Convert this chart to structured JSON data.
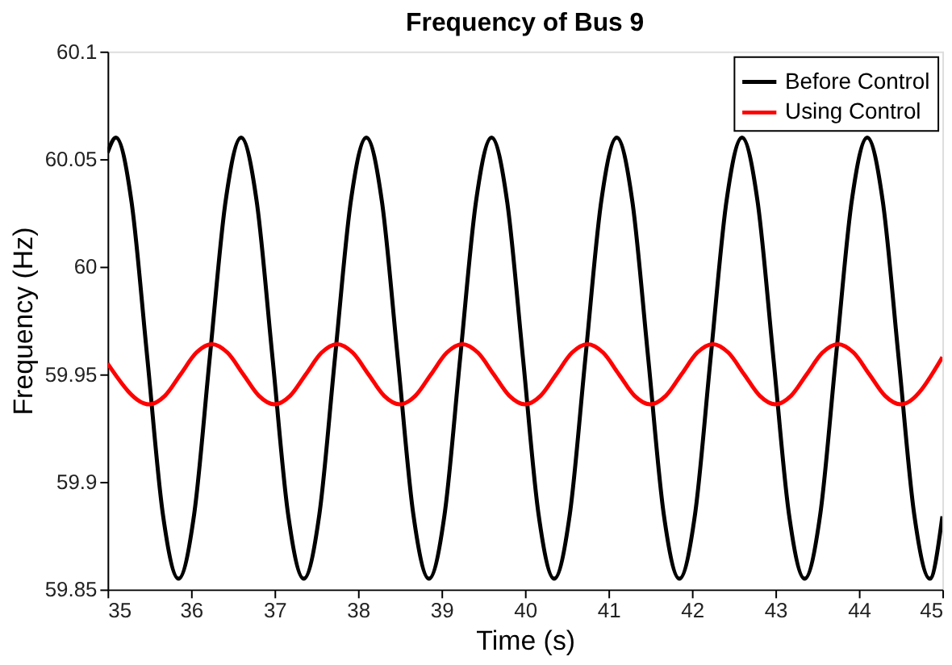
{
  "chart_data": {
    "type": "line",
    "title": "Frequency of Bus 9",
    "xlabel": "Time (s)",
    "ylabel": "Frequency (Hz)",
    "xlim": [
      35,
      45
    ],
    "xticks": [
      35,
      36,
      37,
      38,
      39,
      40,
      41,
      42,
      43,
      44,
      45
    ],
    "ylim": [
      59.85,
      60.1
    ],
    "yticks": [
      59.85,
      59.9,
      59.95,
      60,
      60.05,
      60.1
    ],
    "grid": false,
    "legend": "top right",
    "line_style": "solid",
    "marker": "none",
    "series": [
      {
        "name": "Before Control",
        "color": "#000000",
        "x": [
          35,
          35.1,
          35.2875,
          35.475,
          35.6625,
          35.85,
          36.0375,
          36.225,
          36.4125,
          36.6,
          36.7875,
          36.975,
          37.1625,
          37.35,
          37.5375,
          37.725,
          37.9125,
          38.1,
          38.2875,
          38.475,
          38.6625,
          38.85,
          39.0375,
          39.225,
          39.4125,
          39.6,
          39.7875,
          39.975,
          40.1625,
          40.35,
          40.5375,
          40.725,
          40.9125,
          41.1,
          41.2875,
          41.475,
          41.6625,
          41.85,
          42.0375,
          42.225,
          42.4125,
          42.6,
          42.7875,
          42.975,
          43.1625,
          43.35,
          43.5375,
          43.725,
          43.9125,
          44.1,
          44.2875,
          44.475,
          44.6625,
          44.85,
          45
        ],
        "values": [
          60.053,
          60.06,
          60.03,
          59.958,
          59.885,
          59.855,
          59.885,
          59.958,
          60.03,
          60.06,
          60.03,
          59.958,
          59.885,
          59.855,
          59.885,
          59.958,
          60.03,
          60.06,
          60.03,
          59.958,
          59.885,
          59.855,
          59.885,
          59.958,
          60.03,
          60.06,
          60.03,
          59.958,
          59.885,
          59.855,
          59.885,
          59.958,
          60.03,
          60.06,
          60.03,
          59.958,
          59.885,
          59.855,
          59.885,
          59.958,
          60.03,
          60.06,
          60.03,
          59.958,
          59.885,
          59.855,
          59.885,
          59.958,
          60.03,
          60.06,
          60.03,
          59.958,
          59.885,
          59.855,
          59.884
        ]
      },
      {
        "name": "Using Control",
        "color": "#ff0000",
        "x": [
          35,
          35.5,
          35.6875,
          35.875,
          36.0625,
          36.25,
          36.4375,
          36.625,
          36.8125,
          37,
          37.1875,
          37.375,
          37.5625,
          37.75,
          37.9375,
          38.125,
          38.3125,
          38.5,
          38.6875,
          38.875,
          39.0625,
          39.25,
          39.4375,
          39.625,
          39.8125,
          40,
          40.1875,
          40.375,
          40.5625,
          40.75,
          40.9375,
          41.125,
          41.3125,
          41.5,
          41.6875,
          41.875,
          42.0625,
          42.25,
          42.4375,
          42.625,
          42.8125,
          43,
          43.1875,
          43.375,
          43.5625,
          43.75,
          43.9375,
          44.125,
          44.3125,
          44.5,
          45
        ],
        "values": [
          59.955,
          59.936,
          59.94,
          59.95,
          59.96,
          59.964,
          59.96,
          59.95,
          59.94,
          59.936,
          59.94,
          59.95,
          59.96,
          59.964,
          59.96,
          59.95,
          59.94,
          59.936,
          59.94,
          59.95,
          59.96,
          59.964,
          59.96,
          59.95,
          59.94,
          59.936,
          59.94,
          59.95,
          59.96,
          59.964,
          59.96,
          59.95,
          59.94,
          59.936,
          59.94,
          59.95,
          59.96,
          59.964,
          59.96,
          59.95,
          59.94,
          59.936,
          59.94,
          59.95,
          59.96,
          59.964,
          59.96,
          59.95,
          59.94,
          59.936,
          59.958
        ]
      }
    ]
  }
}
